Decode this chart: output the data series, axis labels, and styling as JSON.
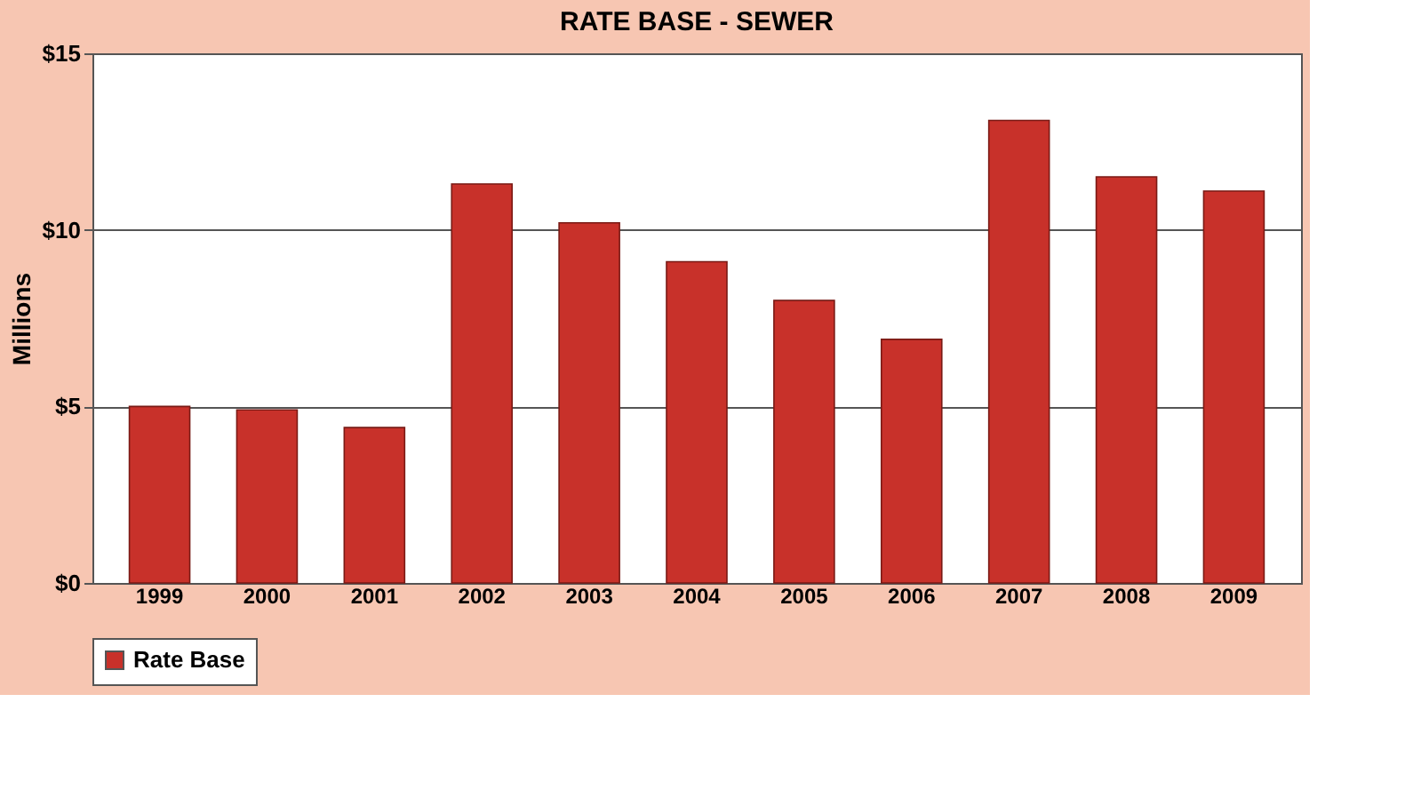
{
  "chart_data": {
    "type": "bar",
    "title": "RATE BASE - SEWER",
    "ylabel": "Millions",
    "categories": [
      "1999",
      "2000",
      "2001",
      "2002",
      "2003",
      "2004",
      "2005",
      "2006",
      "2007",
      "2008",
      "2009"
    ],
    "series": [
      {
        "name": "Rate Base",
        "color": "#c8312a",
        "values": [
          5.0,
          4.9,
          4.4,
          11.3,
          10.2,
          9.1,
          8.0,
          6.9,
          13.1,
          11.5,
          11.1
        ]
      }
    ],
    "ylim": [
      0,
      15
    ],
    "yticks": [
      {
        "value": 0,
        "label": "$0"
      },
      {
        "value": 5,
        "label": "$5"
      },
      {
        "value": 10,
        "label": "$10"
      },
      {
        "value": 15,
        "label": "$15"
      }
    ],
    "grid": "y",
    "legend": "bottom"
  }
}
